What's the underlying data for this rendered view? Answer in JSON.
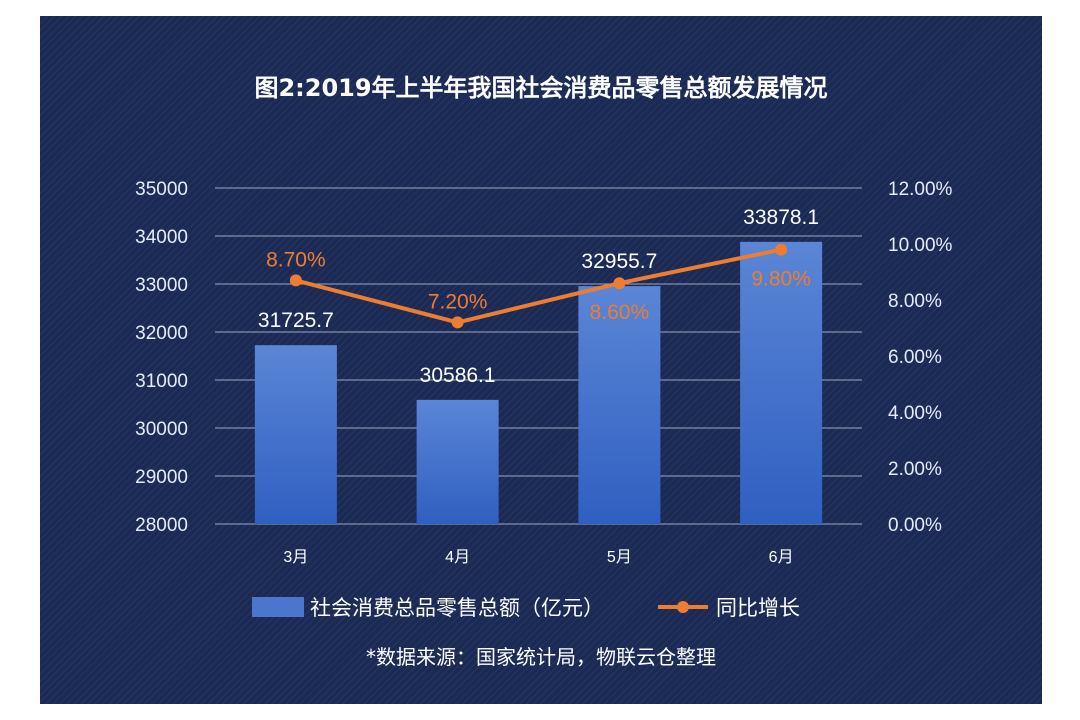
{
  "chart_data": {
    "type": "bar",
    "title": "图2:2019年上半年我国社会消费品零售总额发展情况",
    "categories": [
      "3月",
      "4月",
      "5月",
      "6月"
    ],
    "series": [
      {
        "name": "社会消费总品零售总额（亿元）",
        "type": "bar",
        "axis": "left",
        "values": [
          31725.7,
          30586.1,
          32955.7,
          33878.1
        ],
        "labels": [
          "31725.7",
          "30586.1",
          "32955.7",
          "33878.1"
        ],
        "color": "#4472c4"
      },
      {
        "name": "同比增长",
        "type": "line",
        "axis": "right",
        "values": [
          8.7,
          7.2,
          8.6,
          9.8
        ],
        "labels": [
          "8.70%",
          "7.20%",
          "8.60%",
          "9.80%"
        ],
        "color": "#ed7d31"
      }
    ],
    "y_left": {
      "min": 28000,
      "max": 35000,
      "ticks": [
        "28000",
        "29000",
        "30000",
        "31000",
        "32000",
        "33000",
        "34000",
        "35000"
      ]
    },
    "y_right": {
      "min": 0,
      "max": 12,
      "ticks": [
        "0.00%",
        "2.00%",
        "4.00%",
        "6.00%",
        "8.00%",
        "10.00%",
        "12.00%"
      ]
    },
    "grid": true,
    "legend_position": "bottom",
    "background_color": "#1b2a55"
  },
  "source_note": "*数据来源：国家统计局，物联云仓整理"
}
